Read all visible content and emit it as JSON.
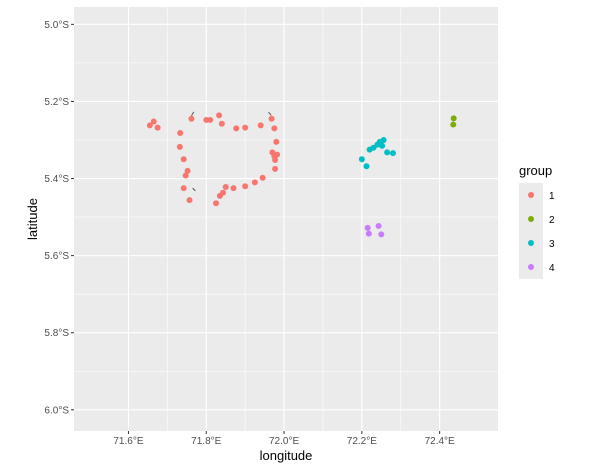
{
  "chart_data": {
    "type": "scatter",
    "title": "",
    "xlabel": "longitude",
    "ylabel": "latitude",
    "xlim": [
      71.46,
      72.55
    ],
    "ylim": [
      -6.055,
      -4.955
    ],
    "x_ticks": [
      71.6,
      71.8,
      72.0,
      72.2,
      72.4
    ],
    "x_tick_labels": [
      "71.6°E",
      "71.8°E",
      "72.0°E",
      "72.2°E",
      "72.4°E"
    ],
    "y_ticks": [
      -5.0,
      -5.2,
      -5.4,
      -5.6,
      -5.8,
      -6.0
    ],
    "y_tick_labels": [
      "5.0°S",
      "5.2°S",
      "5.4°S",
      "5.6°S",
      "5.8°S",
      "6.0°S"
    ],
    "grid": true,
    "legend": {
      "title": "group",
      "position": "right"
    },
    "series": [
      {
        "name": "1",
        "color": "#F8766D",
        "points": [
          [
            71.655,
            -5.262
          ],
          [
            71.665,
            -5.252
          ],
          [
            71.675,
            -5.268
          ],
          [
            71.733,
            -5.282
          ],
          [
            71.762,
            -5.245
          ],
          [
            71.8,
            -5.248
          ],
          [
            71.81,
            -5.248
          ],
          [
            71.833,
            -5.236
          ],
          [
            71.84,
            -5.258
          ],
          [
            71.877,
            -5.27
          ],
          [
            71.9,
            -5.268
          ],
          [
            71.94,
            -5.262
          ],
          [
            71.968,
            -5.245
          ],
          [
            71.975,
            -5.27
          ],
          [
            71.98,
            -5.305
          ],
          [
            71.97,
            -5.332
          ],
          [
            71.975,
            -5.342
          ],
          [
            71.982,
            -5.338
          ],
          [
            71.977,
            -5.352
          ],
          [
            71.977,
            -5.375
          ],
          [
            71.945,
            -5.398
          ],
          [
            71.925,
            -5.41
          ],
          [
            71.9,
            -5.42
          ],
          [
            71.87,
            -5.425
          ],
          [
            71.85,
            -5.422
          ],
          [
            71.843,
            -5.437
          ],
          [
            71.835,
            -5.445
          ],
          [
            71.825,
            -5.464
          ],
          [
            71.732,
            -5.318
          ],
          [
            71.742,
            -5.35
          ],
          [
            71.752,
            -5.38
          ],
          [
            71.747,
            -5.392
          ],
          [
            71.742,
            -5.425
          ],
          [
            71.757,
            -5.456
          ]
        ]
      },
      {
        "name": "2",
        "color": "#7CAE00",
        "points": [
          [
            72.436,
            -5.244
          ],
          [
            72.435,
            -5.26
          ]
        ]
      },
      {
        "name": "3",
        "color": "#00BFC4",
        "points": [
          [
            72.2,
            -5.35
          ],
          [
            72.212,
            -5.368
          ],
          [
            72.22,
            -5.325
          ],
          [
            72.23,
            -5.32
          ],
          [
            72.24,
            -5.312
          ],
          [
            72.246,
            -5.305
          ],
          [
            72.256,
            -5.3
          ],
          [
            72.252,
            -5.315
          ],
          [
            72.265,
            -5.332
          ],
          [
            72.28,
            -5.334
          ]
        ]
      },
      {
        "name": "4",
        "color": "#C77CFF",
        "points": [
          [
            72.215,
            -5.528
          ],
          [
            72.243,
            -5.523
          ],
          [
            72.218,
            -5.543
          ],
          [
            72.25,
            -5.545
          ]
        ]
      }
    ],
    "line_segments": [
      [
        [
          71.762,
          -5.237
        ],
        [
          71.768,
          -5.227
        ]
      ],
      [
        [
          71.765,
          -5.425
        ],
        [
          71.772,
          -5.432
        ]
      ],
      [
        [
          71.96,
          -5.228
        ],
        [
          71.967,
          -5.236
        ]
      ]
    ]
  }
}
